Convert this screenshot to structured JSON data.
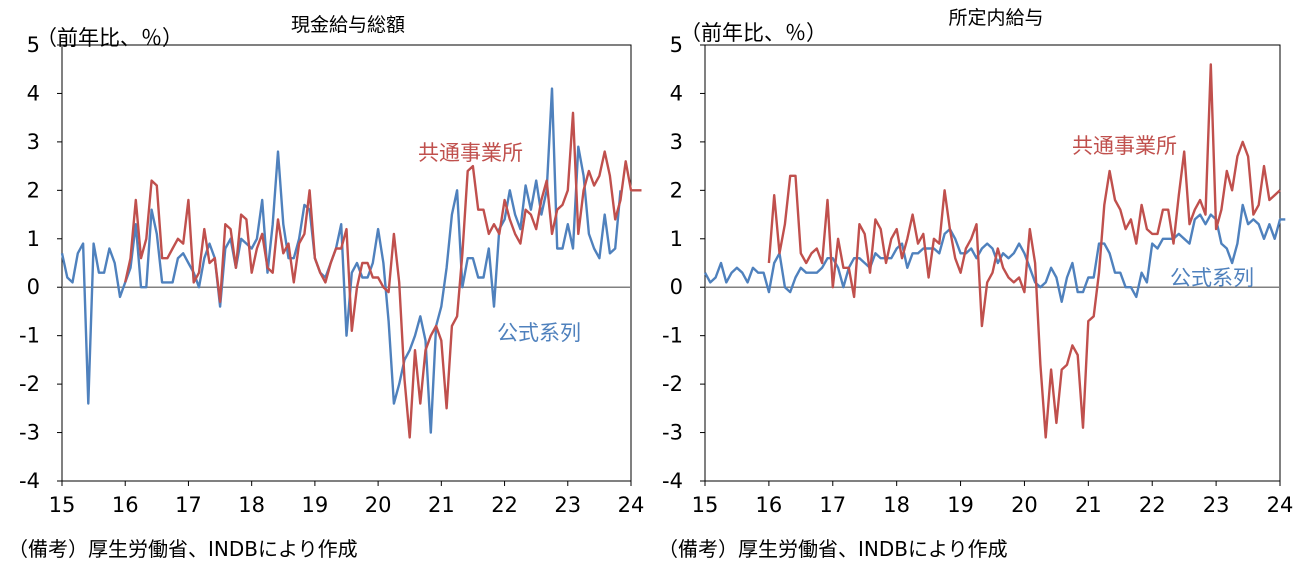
{
  "source_note": "（備考）厚生労働省、INDBにより作成",
  "colors": {
    "official": "#4f81bd",
    "common": "#c0504d",
    "axis": "#000000",
    "zero": "#808080"
  },
  "chart_data": [
    {
      "type": "line",
      "title": "現金給与総額",
      "ylabel": "（前年比、％）",
      "xlabel": "",
      "ylim": [
        -4,
        5
      ],
      "xlim": [
        2015,
        2024
      ],
      "yticks": [
        -4,
        -3,
        -2,
        -1,
        0,
        1,
        2,
        3,
        4,
        5
      ],
      "xtick_labels": [
        "15",
        "16",
        "17",
        "18",
        "19",
        "20",
        "21",
        "22",
        "23",
        "24"
      ],
      "grid": false,
      "series": [
        {
          "name": "公式系列",
          "key": "official",
          "x_start": "2015-01",
          "freq": "monthly",
          "values": [
            0.7,
            0.2,
            0.1,
            0.7,
            0.9,
            -2.4,
            0.9,
            0.3,
            0.3,
            0.8,
            0.5,
            -0.2,
            0.1,
            0.4,
            1.3,
            0.0,
            0.0,
            1.6,
            1.1,
            0.1,
            0.1,
            0.1,
            0.6,
            0.7,
            0.5,
            0.3,
            0.0,
            0.6,
            0.9,
            0.6,
            -0.4,
            0.8,
            1.0,
            0.4,
            1.0,
            0.9,
            0.8,
            1.0,
            1.8,
            0.3,
            1.3,
            2.8,
            1.3,
            0.6,
            0.6,
            1.0,
            1.7,
            1.6,
            0.6,
            0.3,
            0.2,
            0.5,
            0.8,
            1.3,
            -1.0,
            0.3,
            0.5,
            0.2,
            0.2,
            0.5,
            1.2,
            0.5,
            -0.7,
            -2.4,
            -2.0,
            -1.5,
            -1.3,
            -1.0,
            -0.6,
            -1.1,
            -3.0,
            -0.8,
            -0.4,
            0.4,
            1.5,
            2.0,
            0.0,
            0.6,
            0.6,
            0.2,
            0.2,
            0.8,
            -0.4,
            1.2,
            1.4,
            2.0,
            1.5,
            1.2,
            2.1,
            1.6,
            2.2,
            1.5,
            2.0,
            4.1,
            0.8,
            0.8,
            1.3,
            0.8,
            2.9,
            2.3,
            1.1,
            0.8,
            0.6,
            1.5,
            0.7,
            0.8,
            2.0
          ]
        },
        {
          "name": "共通事業所",
          "key": "common",
          "x_start": "2016-01",
          "freq": "monthly",
          "values": [
            0.1,
            0.6,
            1.8,
            0.6,
            1.0,
            2.2,
            2.1,
            0.6,
            0.6,
            0.8,
            1.0,
            0.9,
            1.8,
            0.1,
            0.3,
            1.2,
            0.5,
            0.6,
            -0.3,
            1.3,
            1.2,
            0.4,
            1.5,
            1.4,
            0.3,
            0.8,
            1.1,
            0.4,
            0.3,
            1.4,
            0.7,
            0.9,
            0.1,
            0.9,
            1.1,
            2.0,
            0.6,
            0.3,
            0.1,
            0.5,
            0.8,
            0.8,
            1.2,
            -0.9,
            0.0,
            0.5,
            0.5,
            0.2,
            0.2,
            0.0,
            -0.1,
            1.1,
            0.1,
            -1.9,
            -3.1,
            -1.3,
            -2.4,
            -1.3,
            -1.0,
            -0.8,
            -1.1,
            -2.5,
            -0.8,
            -0.6,
            0.7,
            2.4,
            2.5,
            1.6,
            1.6,
            1.1,
            1.3,
            1.1,
            1.8,
            1.4,
            1.1,
            0.9,
            1.6,
            1.5,
            1.2,
            1.8,
            2.2,
            1.1,
            1.6,
            1.7,
            2.0,
            3.6,
            1.1,
            2.0,
            2.4,
            2.1,
            2.3,
            2.8,
            2.3,
            1.4,
            1.8,
            2.6,
            2.0,
            2.0,
            2.0
          ]
        }
      ],
      "annotations": [
        {
          "text": "共通事業所",
          "series": "common"
        },
        {
          "text": "公式系列",
          "series": "official"
        }
      ]
    },
    {
      "type": "line",
      "title": "所定内給与",
      "ylabel": "（前年比、％）",
      "xlabel": "",
      "ylim": [
        -4,
        5
      ],
      "xlim": [
        2015,
        2024
      ],
      "yticks": [
        -4,
        -3,
        -2,
        -1,
        0,
        1,
        2,
        3,
        4,
        5
      ],
      "xtick_labels": [
        "15",
        "16",
        "17",
        "18",
        "19",
        "20",
        "21",
        "22",
        "23",
        "24"
      ],
      "grid": false,
      "series": [
        {
          "name": "公式系列",
          "key": "official",
          "x_start": "2015-01",
          "freq": "monthly",
          "values": [
            0.3,
            0.1,
            0.2,
            0.5,
            0.1,
            0.3,
            0.4,
            0.3,
            0.1,
            0.4,
            0.3,
            0.3,
            -0.1,
            0.5,
            0.7,
            0.0,
            -0.1,
            0.2,
            0.4,
            0.3,
            0.3,
            0.3,
            0.4,
            0.6,
            0.6,
            0.4,
            0.0,
            0.4,
            0.6,
            0.6,
            0.5,
            0.4,
            0.7,
            0.6,
            0.6,
            0.6,
            0.8,
            0.9,
            0.4,
            0.7,
            0.7,
            0.8,
            0.8,
            0.8,
            0.7,
            1.1,
            1.2,
            1.0,
            0.7,
            0.7,
            0.8,
            0.6,
            0.8,
            0.9,
            0.8,
            0.5,
            0.7,
            0.6,
            0.7,
            0.9,
            0.7,
            0.4,
            0.1,
            0.0,
            0.1,
            0.4,
            0.2,
            -0.3,
            0.2,
            0.5,
            -0.1,
            -0.1,
            0.2,
            0.2,
            0.9,
            0.9,
            0.7,
            0.3,
            0.3,
            0.0,
            0.0,
            -0.2,
            0.3,
            0.1,
            0.9,
            0.8,
            1.0,
            1.0,
            1.0,
            1.1,
            1.0,
            0.9,
            1.4,
            1.5,
            1.3,
            1.5,
            1.4,
            0.9,
            0.8,
            0.5,
            0.9,
            1.7,
            1.3,
            1.4,
            1.3,
            1.0,
            1.3,
            1.0,
            1.4,
            1.4
          ]
        },
        {
          "name": "共通事業所",
          "key": "common",
          "x_start": "2016-01",
          "freq": "monthly",
          "values": [
            0.5,
            1.9,
            0.7,
            1.3,
            2.3,
            2.3,
            0.7,
            0.5,
            0.7,
            0.8,
            0.5,
            1.8,
            0.0,
            1.0,
            0.4,
            0.4,
            -0.2,
            1.3,
            1.1,
            0.3,
            1.4,
            1.2,
            0.5,
            1.0,
            1.2,
            0.6,
            1.0,
            1.5,
            0.9,
            1.1,
            0.2,
            1.0,
            0.9,
            2.0,
            1.2,
            0.6,
            0.3,
            0.8,
            1.0,
            1.3,
            -0.8,
            0.1,
            0.3,
            0.8,
            0.4,
            0.2,
            0.1,
            0.2,
            -0.1,
            1.2,
            0.5,
            -1.6,
            -3.1,
            -1.7,
            -2.8,
            -1.7,
            -1.6,
            -1.2,
            -1.4,
            -2.9,
            -0.7,
            -0.6,
            0.3,
            1.7,
            2.4,
            1.8,
            1.6,
            1.2,
            1.4,
            0.9,
            1.7,
            1.2,
            1.1,
            1.1,
            1.6,
            1.6,
            0.9,
            1.9,
            2.8,
            1.3,
            1.6,
            1.8,
            1.5,
            4.6,
            1.2,
            1.6,
            2.4,
            2.0,
            2.7,
            3.0,
            2.7,
            1.5,
            1.7,
            2.5,
            1.8,
            1.9,
            2.0
          ]
        }
      ],
      "annotations": [
        {
          "text": "共通事業所",
          "series": "common"
        },
        {
          "text": "公式系列",
          "series": "official"
        }
      ]
    }
  ]
}
